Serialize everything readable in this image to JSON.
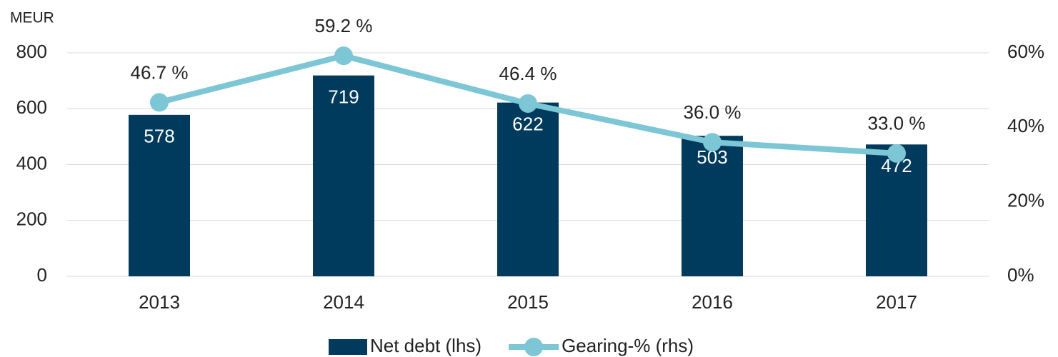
{
  "chart_data": {
    "type": "bar_line",
    "y_label": "MEUR",
    "categories": [
      "2013",
      "2014",
      "2015",
      "2016",
      "2017"
    ],
    "series": [
      {
        "name": "Net debt (lhs)",
        "type": "bar",
        "color": "#003a5c",
        "values": [
          578,
          719,
          622,
          503,
          472
        ]
      },
      {
        "name": "Gearing-% (rhs)",
        "type": "line",
        "axis": "y2",
        "color": "#7cc6d6",
        "values": [
          46.7,
          59.2,
          46.4,
          36.0,
          33.0
        ],
        "value_labels": [
          "46.7 %",
          "59.2 %",
          "46.4 %",
          "36.0 %",
          "33.0 %"
        ]
      }
    ],
    "ylim": [
      0,
      800
    ],
    "yticks": [
      0,
      200,
      400,
      600,
      800
    ],
    "y2lim": [
      0,
      60
    ],
    "y2ticks": [
      {
        "value": 0,
        "label": "0%"
      },
      {
        "value": 20,
        "label": "20%"
      },
      {
        "value": 40,
        "label": "40%"
      },
      {
        "value": 60,
        "label": "60%"
      }
    ],
    "grid": true,
    "legend": "bottom"
  }
}
